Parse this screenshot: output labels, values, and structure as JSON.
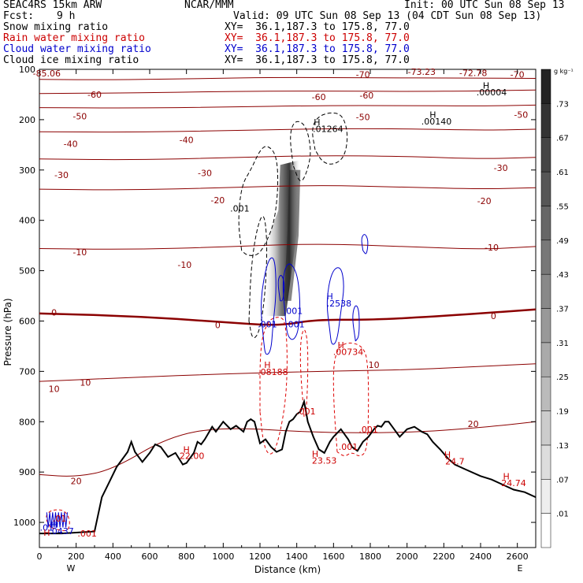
{
  "header": {
    "title": "SEAC4RS 15km ARW",
    "center": "NCAR/MMM",
    "init": "Init: 00 UTC Sun 08 Sep 13",
    "fcst_label": "Fcst:",
    "fcst_value": "9 h",
    "valid": "Valid: 09 UTC Sun 08 Sep 13 (04 CDT Sun 08 Sep 13)",
    "fields": [
      {
        "name": "Snow mixing ratio",
        "xy": "XY=  36.1,187.3 to 175.8, 77.0",
        "color": "#000000"
      },
      {
        "name": "Rain water mixing ratio",
        "xy": "XY=  36.1,187.3 to 175.8, 77.0",
        "color": "#cc0000"
      },
      {
        "name": "Cloud water mixing ratio",
        "xy": "XY=  36.1,187.3 to 175.8, 77.0",
        "color": "#0000cc"
      },
      {
        "name": "Cloud ice mixing ratio",
        "xy": "XY=  36.1,187.3 to 175.8, 77.0",
        "color": "#000000"
      }
    ]
  },
  "chart_data": {
    "type": "contour",
    "xlabel": "Distance (km)",
    "ylabel": "Pressure (hPa)",
    "xlim": [
      0,
      2700
    ],
    "ylim": [
      1050,
      100
    ],
    "x_ticks": [
      0,
      200,
      400,
      600,
      800,
      1000,
      1200,
      1400,
      1600,
      1800,
      2000,
      2200,
      2400,
      2600
    ],
    "y_ticks": [
      100,
      200,
      300,
      400,
      500,
      600,
      700,
      800,
      900,
      1000
    ],
    "x_end_labels": {
      "left": "W",
      "right": "E"
    },
    "temperature_contours": [
      {
        "label": "-70",
        "values": [
          [
            0,
            120
          ],
          [
            400,
            121
          ],
          [
            900,
            118
          ],
          [
            1300,
            116
          ],
          [
            1800,
            117
          ],
          [
            2300,
            117
          ],
          [
            2700,
            118
          ]
        ],
        "major": false
      },
      {
        "label": "-60",
        "values": [
          [
            0,
            148
          ],
          [
            500,
            147
          ],
          [
            1000,
            144
          ],
          [
            1500,
            143
          ],
          [
            2000,
            144
          ],
          [
            2400,
            143
          ],
          [
            2700,
            141
          ]
        ],
        "major": false
      },
      {
        "label": "-50",
        "values": [
          [
            0,
            176
          ],
          [
            500,
            177
          ],
          [
            1000,
            175
          ],
          [
            1500,
            172
          ],
          [
            2000,
            172
          ],
          [
            2400,
            173
          ],
          [
            2700,
            171
          ]
        ],
        "major": false
      },
      {
        "label": "-40",
        "values": [
          [
            0,
            224
          ],
          [
            500,
            225
          ],
          [
            1000,
            222
          ],
          [
            1500,
            218
          ],
          [
            2000,
            218
          ],
          [
            2400,
            221
          ],
          [
            2700,
            219
          ]
        ],
        "major": false
      },
      {
        "label": "-30",
        "values": [
          [
            0,
            278
          ],
          [
            500,
            280
          ],
          [
            1000,
            276
          ],
          [
            1500,
            271
          ],
          [
            2000,
            273
          ],
          [
            2400,
            278
          ],
          [
            2700,
            275
          ]
        ],
        "major": false
      },
      {
        "label": "-20",
        "values": [
          [
            0,
            338
          ],
          [
            500,
            340
          ],
          [
            1000,
            335
          ],
          [
            1500,
            330
          ],
          [
            2000,
            334
          ],
          [
            2400,
            338
          ],
          [
            2700,
            335
          ]
        ],
        "major": false
      },
      {
        "label": "-10",
        "values": [
          [
            0,
            456
          ],
          [
            500,
            458
          ],
          [
            1000,
            453
          ],
          [
            1500,
            446
          ],
          [
            2000,
            452
          ],
          [
            2400,
            458
          ],
          [
            2700,
            452
          ]
        ],
        "major": false
      },
      {
        "label": "0",
        "values": [
          [
            0,
            585
          ],
          [
            500,
            590
          ],
          [
            1000,
            602
          ],
          [
            1300,
            610
          ],
          [
            1500,
            597
          ],
          [
            1800,
            598
          ],
          [
            2200,
            590
          ],
          [
            2700,
            577
          ]
        ],
        "major": true
      },
      {
        "label": "10",
        "values": [
          [
            0,
            720
          ],
          [
            500,
            712
          ],
          [
            1000,
            705
          ],
          [
            1500,
            700
          ],
          [
            2000,
            697
          ],
          [
            2400,
            690
          ],
          [
            2700,
            685
          ]
        ],
        "major": false
      },
      {
        "label": "20",
        "values": [
          [
            0,
            905
          ],
          [
            200,
            910
          ],
          [
            400,
            895
          ],
          [
            700,
            830
          ],
          [
            1000,
            810
          ],
          [
            1500,
            822
          ],
          [
            2000,
            822
          ],
          [
            2400,
            812
          ],
          [
            2700,
            800
          ]
        ],
        "major": false
      }
    ],
    "contour_labels": [
      {
        "text": "-85.06",
        "x": 40,
        "p": 108
      },
      {
        "text": "-73.23",
        "x": 2080,
        "p": 105
      },
      {
        "text": "-72.78",
        "x": 2360,
        "p": 107
      },
      {
        "text": "-70",
        "x": 1760,
        "p": 110
      },
      {
        "text": "-70",
        "x": 2600,
        "p": 110
      },
      {
        "text": "-60",
        "x": 300,
        "p": 150
      },
      {
        "text": "-60",
        "x": 1520,
        "p": 155
      },
      {
        "text": "-60",
        "x": 1780,
        "p": 152
      },
      {
        "text": "-50",
        "x": 220,
        "p": 193
      },
      {
        "text": "-50",
        "x": 1760,
        "p": 195
      },
      {
        "text": "-50",
        "x": 2620,
        "p": 190
      },
      {
        "text": "-40",
        "x": 170,
        "p": 248
      },
      {
        "text": "-40",
        "x": 800,
        "p": 240
      },
      {
        "text": "-30",
        "x": 120,
        "p": 310
      },
      {
        "text": "-30",
        "x": 900,
        "p": 306
      },
      {
        "text": "-30",
        "x": 2510,
        "p": 296
      },
      {
        "text": "-20",
        "x": 970,
        "p": 360
      },
      {
        "text": "-20",
        "x": 2420,
        "p": 361
      },
      {
        "text": "-10",
        "x": 220,
        "p": 463
      },
      {
        "text": "-10",
        "x": 790,
        "p": 488
      },
      {
        "text": "-10",
        "x": 2460,
        "p": 454
      },
      {
        "text": "0",
        "x": 80,
        "p": 583
      },
      {
        "text": "0",
        "x": 970,
        "p": 608
      },
      {
        "text": "0",
        "x": 2470,
        "p": 590
      },
      {
        "text": "10",
        "x": 80,
        "p": 735
      },
      {
        "text": "10",
        "x": 250,
        "p": 722
      },
      {
        "text": "10",
        "x": 1820,
        "p": 687
      },
      {
        "text": "20",
        "x": 200,
        "p": 918
      },
      {
        "text": "20",
        "x": 2360,
        "p": 804
      }
    ],
    "extrema_labels": [
      {
        "text": "H",
        "x": 2430,
        "p": 132,
        "color": "#000000"
      },
      {
        "text": ".00004",
        "x": 2460,
        "p": 145,
        "color": "#000000"
      },
      {
        "text": "H",
        "x": 2140,
        "p": 190,
        "color": "#000000"
      },
      {
        "text": ".00140",
        "x": 2160,
        "p": 203,
        "color": "#000000"
      },
      {
        "text": "H",
        "x": 1510,
        "p": 205,
        "color": "#000000"
      },
      {
        "text": ".01264",
        "x": 1570,
        "p": 218,
        "color": "#000000"
      },
      {
        "text": ".001",
        "x": 1090,
        "p": 376,
        "color": "#000000"
      },
      {
        "text": "H",
        "x": 1580,
        "p": 551,
        "color": "#0000cc"
      },
      {
        "text": ".2538",
        "x": 1630,
        "p": 565,
        "color": "#0000cc"
      },
      {
        "text": ".001",
        "x": 1380,
        "p": 580,
        "color": "#0000cc"
      },
      {
        "text": ".001",
        "x": 1240,
        "p": 606,
        "color": "#0000cc"
      },
      {
        "text": ".001",
        "x": 1390,
        "p": 606,
        "color": "#0000cc"
      },
      {
        "text": "H",
        "x": 1640,
        "p": 648,
        "color": "#cc0000"
      },
      {
        "text": ".00734",
        "x": 1680,
        "p": 661,
        "color": "#cc0000"
      },
      {
        "text": "H",
        "x": 1240,
        "p": 687,
        "color": "#cc0000"
      },
      {
        "text": ".08188",
        "x": 1270,
        "p": 701,
        "color": "#cc0000"
      },
      {
        "text": ".001",
        "x": 1450,
        "p": 779,
        "color": "#cc0000"
      },
      {
        "text": ".001",
        "x": 1790,
        "p": 815,
        "color": "#cc0000"
      },
      {
        "text": ".001",
        "x": 1680,
        "p": 850,
        "color": "#cc0000"
      },
      {
        "text": "H",
        "x": 800,
        "p": 855,
        "color": "#cc0000"
      },
      {
        "text": "22.00",
        "x": 830,
        "p": 868,
        "color": "#cc0000"
      },
      {
        "text": "H",
        "x": 1500,
        "p": 864,
        "color": "#cc0000"
      },
      {
        "text": "23.53",
        "x": 1550,
        "p": 877,
        "color": "#cc0000"
      },
      {
        "text": "H",
        "x": 2220,
        "p": 865,
        "color": "#cc0000"
      },
      {
        "text": "24.7",
        "x": 2260,
        "p": 879,
        "color": "#cc0000"
      },
      {
        "text": "H",
        "x": 2540,
        "p": 908,
        "color": "#cc0000"
      },
      {
        "text": "24.74",
        "x": 2580,
        "p": 922,
        "color": "#cc0000"
      },
      {
        "text": ".0437",
        "x": 120,
        "p": 1017,
        "color": "#0000cc"
      },
      {
        "text": "H",
        "x": 80,
        "p": 1005,
        "color": "#0000cc"
      },
      {
        "text": ".01",
        "x": 40,
        "p": 1010,
        "color": "#0000cc"
      },
      {
        "text": ".01",
        "x": 110,
        "p": 992,
        "color": "#cc0000"
      },
      {
        "text": ".001",
        "x": 260,
        "p": 1022,
        "color": "#cc0000"
      },
      {
        "text": "H",
        "x": 40,
        "p": 1020,
        "color": "#cc0000"
      }
    ],
    "terrain": [
      [
        0,
        1022
      ],
      [
        120,
        1022
      ],
      [
        300,
        1018
      ],
      [
        340,
        950
      ],
      [
        380,
        920
      ],
      [
        420,
        890
      ],
      [
        480,
        860
      ],
      [
        500,
        840
      ],
      [
        520,
        860
      ],
      [
        560,
        880
      ],
      [
        600,
        862
      ],
      [
        630,
        845
      ],
      [
        660,
        850
      ],
      [
        700,
        870
      ],
      [
        740,
        862
      ],
      [
        780,
        885
      ],
      [
        800,
        882
      ],
      [
        840,
        862
      ],
      [
        860,
        840
      ],
      [
        880,
        845
      ],
      [
        900,
        835
      ],
      [
        940,
        810
      ],
      [
        960,
        820
      ],
      [
        1000,
        800
      ],
      [
        1040,
        815
      ],
      [
        1070,
        808
      ],
      [
        1110,
        820
      ],
      [
        1130,
        800
      ],
      [
        1150,
        795
      ],
      [
        1170,
        800
      ],
      [
        1200,
        843
      ],
      [
        1230,
        835
      ],
      [
        1260,
        850
      ],
      [
        1290,
        860
      ],
      [
        1320,
        855
      ],
      [
        1340,
        820
      ],
      [
        1360,
        800
      ],
      [
        1380,
        795
      ],
      [
        1400,
        785
      ],
      [
        1420,
        780
      ],
      [
        1440,
        760
      ],
      [
        1460,
        800
      ],
      [
        1490,
        830
      ],
      [
        1520,
        855
      ],
      [
        1550,
        862
      ],
      [
        1580,
        840
      ],
      [
        1600,
        830
      ],
      [
        1640,
        815
      ],
      [
        1680,
        835
      ],
      [
        1700,
        850
      ],
      [
        1730,
        858
      ],
      [
        1760,
        840
      ],
      [
        1790,
        830
      ],
      [
        1820,
        815
      ],
      [
        1840,
        808
      ],
      [
        1860,
        810
      ],
      [
        1880,
        800
      ],
      [
        1900,
        800
      ],
      [
        1920,
        810
      ],
      [
        1960,
        830
      ],
      [
        2000,
        815
      ],
      [
        2040,
        810
      ],
      [
        2080,
        820
      ],
      [
        2110,
        825
      ],
      [
        2140,
        840
      ],
      [
        2180,
        855
      ],
      [
        2220,
        872
      ],
      [
        2260,
        885
      ],
      [
        2320,
        895
      ],
      [
        2400,
        908
      ],
      [
        2460,
        915
      ],
      [
        2520,
        925
      ],
      [
        2580,
        935
      ],
      [
        2640,
        940
      ],
      [
        2700,
        950
      ]
    ],
    "snow_max": ".01264",
    "rain_max": ".08188",
    "cloud_water_max": ".2538",
    "colorbar": {
      "unit": "g kg⁻¹",
      "labels": [
        ".01",
        ".07",
        ".13",
        ".19",
        ".25",
        ".31",
        ".37",
        ".43",
        ".49",
        ".55",
        ".61",
        ".67",
        ".73"
      ]
    }
  }
}
